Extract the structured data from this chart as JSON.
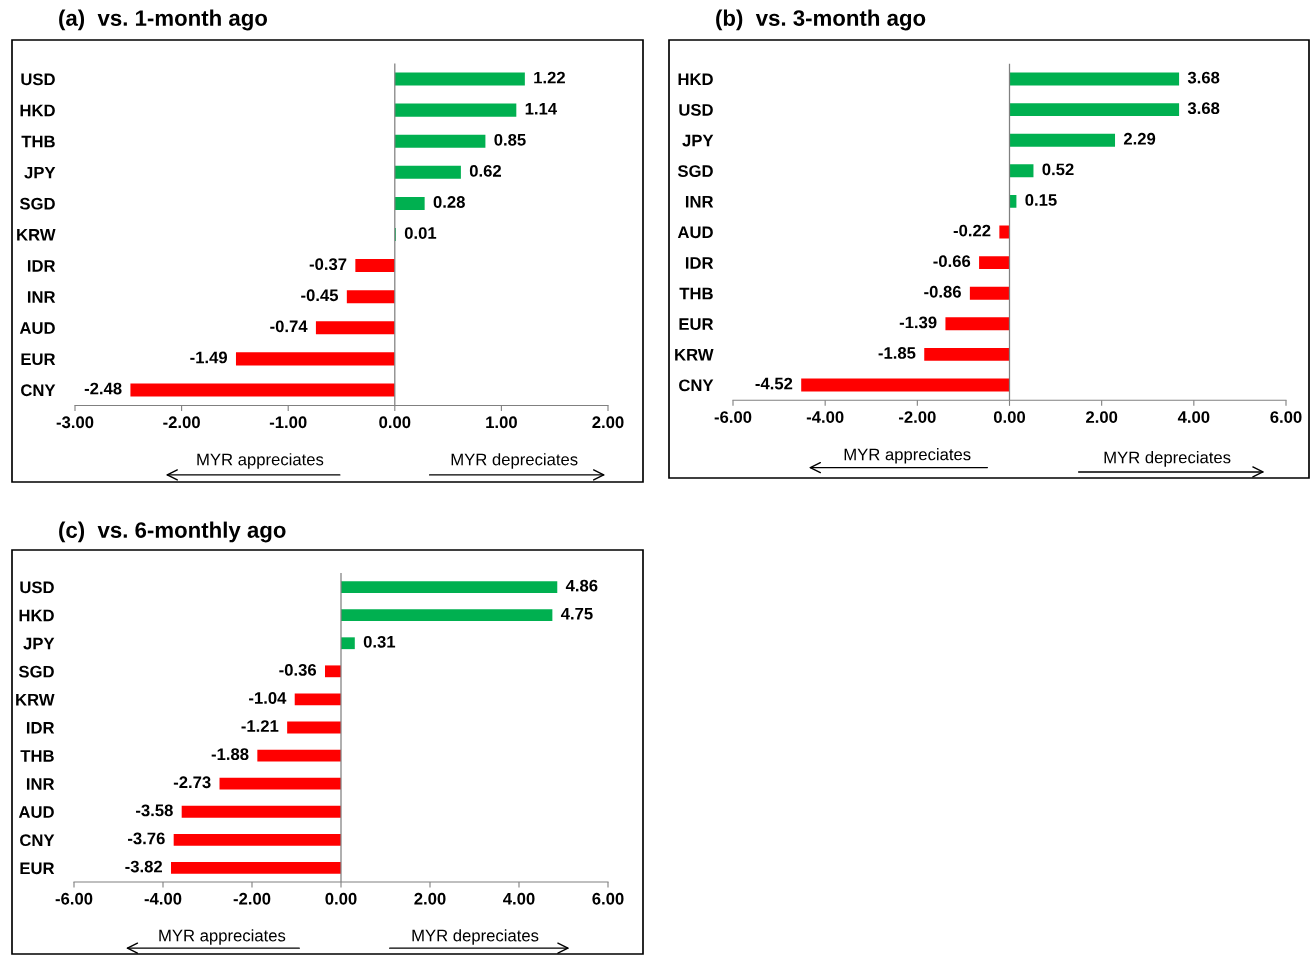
{
  "chart_data": [
    {
      "type": "bar",
      "orientation": "horizontal",
      "title": "(a)  vs. 1-month ago",
      "categories": [
        "USD",
        "HKD",
        "THB",
        "JPY",
        "SGD",
        "KRW",
        "IDR",
        "INR",
        "AUD",
        "EUR",
        "CNY"
      ],
      "values": [
        1.22,
        1.14,
        0.85,
        0.62,
        0.28,
        0.01,
        -0.37,
        -0.45,
        -0.74,
        -1.49,
        -2.48
      ],
      "colors": [
        "#00b050",
        "#00b050",
        "#00b050",
        "#00b050",
        "#00b050",
        "#00b050",
        "#ff0000",
        "#ff0000",
        "#ff0000",
        "#ff0000",
        "#ff0000"
      ],
      "xlim": [
        -3,
        2
      ],
      "xticks": [
        {
          "value": -3,
          "label": "-3.00"
        },
        {
          "value": -2,
          "label": "-2.00"
        },
        {
          "value": -1,
          "label": "-1.00"
        },
        {
          "value": 0,
          "label": "0.00"
        },
        {
          "value": 1,
          "label": "1.00"
        },
        {
          "value": 2,
          "label": "2.00"
        }
      ],
      "data_labels": true,
      "grid": false,
      "legend": false,
      "ref_lines": [
        {
          "axis": "x",
          "value": 0,
          "color": "#808080"
        }
      ],
      "annotations": [
        "MYR appreciates",
        "MYR depreciates"
      ]
    },
    {
      "type": "bar",
      "orientation": "horizontal",
      "title": "(b)  vs. 3-month ago",
      "categories": [
        "HKD",
        "USD",
        "JPY",
        "SGD",
        "INR",
        "AUD",
        "IDR",
        "THB",
        "EUR",
        "KRW",
        "CNY"
      ],
      "values": [
        3.68,
        3.68,
        2.29,
        0.52,
        0.15,
        -0.22,
        -0.66,
        -0.86,
        -1.39,
        -1.85,
        -4.52
      ],
      "colors": [
        "#00b050",
        "#00b050",
        "#00b050",
        "#00b050",
        "#00b050",
        "#ff0000",
        "#ff0000",
        "#ff0000",
        "#ff0000",
        "#ff0000",
        "#ff0000"
      ],
      "xlim": [
        -6,
        6
      ],
      "xticks": [
        {
          "value": -6,
          "label": "-6.00"
        },
        {
          "value": -4,
          "label": "-4.00"
        },
        {
          "value": -2,
          "label": "-2.00"
        },
        {
          "value": 0,
          "label": "0.00"
        },
        {
          "value": 2,
          "label": "2.00"
        },
        {
          "value": 4,
          "label": "4.00"
        },
        {
          "value": 6,
          "label": "6.00"
        }
      ],
      "data_labels": true,
      "grid": false,
      "legend": false,
      "ref_lines": [
        {
          "axis": "x",
          "value": 0,
          "color": "#808080"
        }
      ],
      "annotations": [
        "MYR appreciates",
        "MYR depreciates"
      ]
    },
    {
      "type": "bar",
      "orientation": "horizontal",
      "title": "(c)  vs. 6-monthly ago",
      "categories": [
        "USD",
        "HKD",
        "JPY",
        "SGD",
        "KRW",
        "IDR",
        "THB",
        "INR",
        "AUD",
        "CNY",
        "EUR"
      ],
      "values": [
        4.86,
        4.75,
        0.31,
        -0.36,
        -1.04,
        -1.21,
        -1.88,
        -2.73,
        -3.58,
        -3.76,
        -3.82
      ],
      "colors": [
        "#00b050",
        "#00b050",
        "#00b050",
        "#ff0000",
        "#ff0000",
        "#ff0000",
        "#ff0000",
        "#ff0000",
        "#ff0000",
        "#ff0000",
        "#ff0000"
      ],
      "xlim": [
        -6,
        6
      ],
      "xticks": [
        {
          "value": -6,
          "label": "-6.00"
        },
        {
          "value": -4,
          "label": "-4.00"
        },
        {
          "value": -2,
          "label": "-2.00"
        },
        {
          "value": 0,
          "label": "0.00"
        },
        {
          "value": 2,
          "label": "2.00"
        },
        {
          "value": 4,
          "label": "4.00"
        },
        {
          "value": 6,
          "label": "6.00"
        }
      ],
      "data_labels": true,
      "grid": false,
      "legend": false,
      "ref_lines": [
        {
          "axis": "x",
          "value": 0,
          "color": "#808080"
        }
      ],
      "annotations": [
        "MYR appreciates",
        "MYR depreciates"
      ]
    }
  ]
}
